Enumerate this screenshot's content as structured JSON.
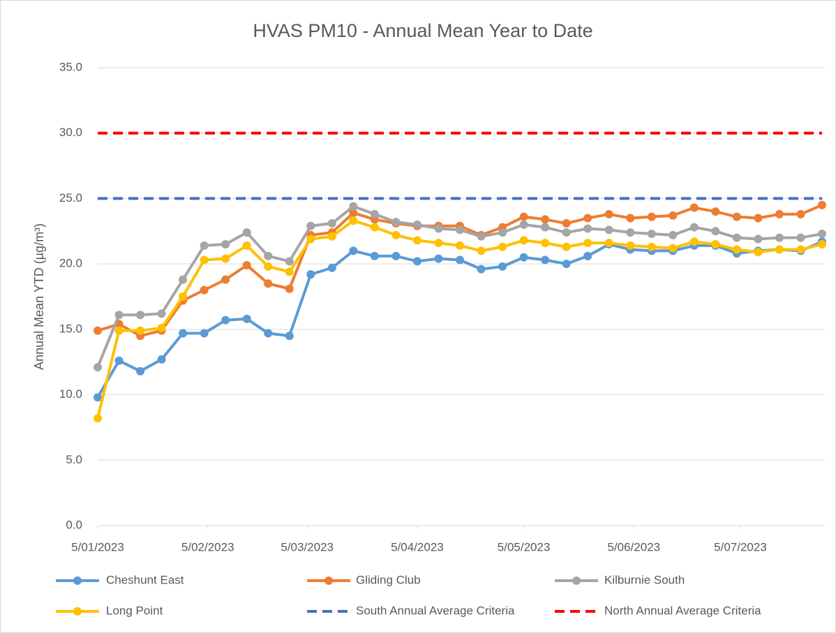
{
  "chart_data": {
    "type": "line",
    "title": "HVAS PM10 - Annual Mean Year to Date",
    "y_label": "Annual Mean YTD (µg/m³)",
    "x": [
      "5/01/2023",
      "11/01/2023",
      "17/01/2023",
      "23/01/2023",
      "29/01/2023",
      "4/02/2023",
      "10/02/2023",
      "16/02/2023",
      "22/02/2023",
      "28/02/2023",
      "6/03/2023",
      "12/03/2023",
      "18/03/2023",
      "24/03/2023",
      "30/03/2023",
      "5/04/2023",
      "11/04/2023",
      "17/04/2023",
      "23/04/2023",
      "29/04/2023",
      "5/05/2023",
      "11/05/2023",
      "17/05/2023",
      "23/05/2023",
      "29/05/2023",
      "4/06/2023",
      "10/06/2023",
      "16/06/2023",
      "22/06/2023",
      "28/06/2023",
      "4/07/2023",
      "10/07/2023",
      "16/07/2023",
      "22/07/2023",
      "28/07/2023"
    ],
    "xlim": [
      "5/01/2023",
      "28/07/2023"
    ],
    "xticks": [
      "5/01/2023",
      "5/02/2023",
      "5/03/2023",
      "5/04/2023",
      "5/05/2023",
      "5/06/2023",
      "5/07/2023"
    ],
    "ylim": [
      0,
      35
    ],
    "yticks": [
      {
        "value": 0,
        "label": "0.0"
      },
      {
        "value": 5,
        "label": "5.0"
      },
      {
        "value": 10,
        "label": "10.0"
      },
      {
        "value": 15,
        "label": "15.0"
      },
      {
        "value": 20,
        "label": "20.0"
      },
      {
        "value": 25,
        "label": "25.0"
      },
      {
        "value": 30,
        "label": "30.0"
      },
      {
        "value": 35,
        "label": "35.0"
      }
    ],
    "grid": true,
    "legend": "bottom",
    "series": [
      {
        "name": "Cheshunt East",
        "color": "#5b9bd5",
        "marker": true,
        "values": [
          9.8,
          12.6,
          11.8,
          12.7,
          14.7,
          14.7,
          15.7,
          15.8,
          14.7,
          14.5,
          19.2,
          19.7,
          21.0,
          20.6,
          20.6,
          20.2,
          20.4,
          20.3,
          19.6,
          19.8,
          20.5,
          20.3,
          20.0,
          20.6,
          21.5,
          21.1,
          21.0,
          21.0,
          21.4,
          21.4,
          20.8,
          21.0,
          21.1,
          21.0,
          21.7
        ]
      },
      {
        "name": "Gliding Club",
        "color": "#ed7d31",
        "marker": true,
        "values": [
          14.9,
          15.4,
          14.5,
          14.9,
          17.2,
          18.0,
          18.8,
          19.9,
          18.5,
          18.1,
          22.2,
          22.4,
          23.9,
          23.4,
          23.1,
          22.9,
          22.9,
          22.9,
          22.2,
          22.8,
          23.6,
          23.4,
          23.1,
          23.5,
          23.8,
          23.5,
          23.6,
          23.7,
          24.3,
          24.0,
          23.6,
          23.5,
          23.8,
          23.8,
          24.5
        ]
      },
      {
        "name": "Kilburnie South",
        "color": "#a5a5a5",
        "marker": true,
        "values": [
          12.1,
          16.1,
          16.1,
          16.2,
          18.8,
          21.4,
          21.5,
          22.4,
          20.6,
          20.2,
          22.9,
          23.1,
          24.4,
          23.8,
          23.2,
          23.0,
          22.7,
          22.6,
          22.1,
          22.4,
          23.0,
          22.8,
          22.4,
          22.7,
          22.6,
          22.4,
          22.3,
          22.2,
          22.8,
          22.5,
          22.0,
          21.9,
          22.0,
          22.0,
          22.3
        ]
      },
      {
        "name": "Long Point",
        "color": "#ffc000",
        "marker": true,
        "values": [
          8.2,
          14.9,
          14.9,
          15.1,
          17.5,
          20.3,
          20.4,
          21.4,
          19.8,
          19.4,
          21.9,
          22.1,
          23.3,
          22.8,
          22.2,
          21.8,
          21.6,
          21.4,
          21.0,
          21.3,
          21.8,
          21.6,
          21.3,
          21.6,
          21.6,
          21.4,
          21.3,
          21.2,
          21.7,
          21.5,
          21.1,
          20.9,
          21.1,
          21.1,
          21.5
        ]
      },
      {
        "name": "South Annual Average Criteria",
        "color": "#4472c4",
        "dashed": true,
        "values": [
          25,
          25,
          25,
          25,
          25,
          25,
          25,
          25,
          25,
          25,
          25,
          25,
          25,
          25,
          25,
          25,
          25,
          25,
          25,
          25,
          25,
          25,
          25,
          25,
          25,
          25,
          25,
          25,
          25,
          25,
          25,
          25,
          25,
          25,
          25
        ]
      },
      {
        "name": "North Annual Average Criteria",
        "color": "#ff0000",
        "dashed": true,
        "values": [
          30,
          30,
          30,
          30,
          30,
          30,
          30,
          30,
          30,
          30,
          30,
          30,
          30,
          30,
          30,
          30,
          30,
          30,
          30,
          30,
          30,
          30,
          30,
          30,
          30,
          30,
          30,
          30,
          30,
          30,
          30,
          30,
          30,
          30,
          30
        ]
      }
    ]
  }
}
